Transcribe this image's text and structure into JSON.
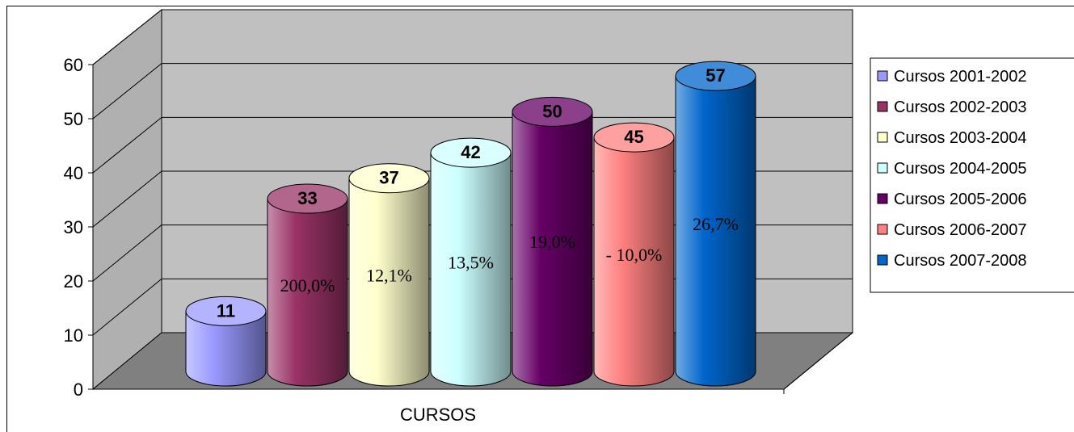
{
  "chart_data": {
    "type": "bar",
    "style": "3d-cylinder",
    "xlabel": "CURSOS",
    "ylim": [
      0,
      60
    ],
    "yticks": [
      0,
      10,
      20,
      30,
      40,
      50,
      60
    ],
    "grid": true,
    "legend_position": "right",
    "series": [
      {
        "name": "Cursos 2001-2002",
        "value": 11,
        "pct_label": "",
        "color": "#9999FF"
      },
      {
        "name": "Cursos 2002-2003",
        "value": 33,
        "pct_label": "200,0%",
        "color": "#993366"
      },
      {
        "name": "Cursos 2003-2004",
        "value": 37,
        "pct_label": "12,1%",
        "color": "#FFFFCC"
      },
      {
        "name": "Cursos 2004-2005",
        "value": 42,
        "pct_label": "13,5%",
        "color": "#CCFFFF"
      },
      {
        "name": "Cursos 2005-2006",
        "value": 50,
        "pct_label": "19,0%",
        "color": "#660066"
      },
      {
        "name": "Cursos 2006-2007",
        "value": 45,
        "pct_label": "- 10,0%",
        "color": "#FF8080"
      },
      {
        "name": "Cursos 2007-2008",
        "value": 57,
        "pct_label": "26,7%",
        "color": "#0066CC"
      }
    ]
  }
}
